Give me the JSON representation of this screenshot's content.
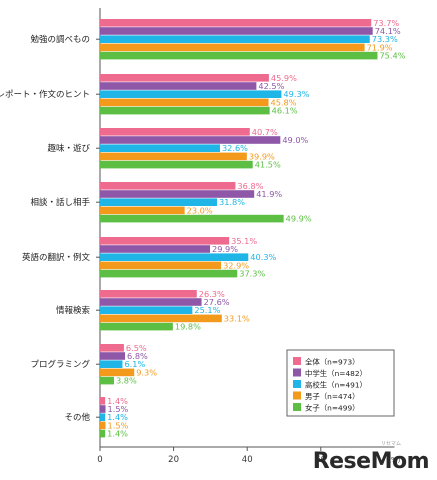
{
  "chart_data": {
    "type": "bar",
    "orientation": "horizontal",
    "categories": [
      "勉強の調べもの",
      "レポート・作文のヒント",
      "趣味・遊び",
      "相談・話し相手",
      "英語の翻訳・例文",
      "情報検索",
      "プログラミング",
      "その他"
    ],
    "series": [
      {
        "name": "全体（n=973）",
        "values": [
          73.7,
          45.9,
          40.7,
          36.8,
          35.1,
          26.3,
          6.5,
          1.4
        ],
        "labels": [
          "73.7%",
          "45.9%",
          "40.7%",
          "36.8%",
          "35.1%",
          "26.3%",
          "6.5%",
          "1.4%"
        ],
        "color": "#ef6a8f"
      },
      {
        "name": "中学生（n=482）",
        "values": [
          74.1,
          42.5,
          49.0,
          41.9,
          29.9,
          27.6,
          6.8,
          1.5
        ],
        "labels": [
          "74.1%",
          "42.5%",
          "49.0%",
          "41.9%",
          "29.9%",
          "27.6%",
          "6.8%",
          "1.5%"
        ],
        "color": "#8e57a8"
      },
      {
        "name": "高校生（n=491）",
        "values": [
          73.3,
          49.3,
          32.6,
          31.8,
          40.3,
          25.1,
          6.1,
          1.4
        ],
        "labels": [
          "73.3%",
          "49.3%",
          "32.6%",
          "31.8%",
          "40.3%",
          "25.1%",
          "6.1%",
          "1.4%"
        ],
        "color": "#1fb5e6"
      },
      {
        "name": "男子（n=474）",
        "values": [
          71.9,
          45.8,
          39.9,
          23.0,
          32.9,
          33.1,
          9.3,
          1.5
        ],
        "labels": [
          "71.9%",
          "45.8%",
          "39.9%",
          "23.0%",
          "32.9%",
          "33.1%",
          "9.3%",
          "1.5%"
        ],
        "color": "#f39a1c"
      },
      {
        "name": "女子（n=499）",
        "values": [
          75.4,
          46.1,
          41.5,
          49.9,
          37.3,
          19.8,
          3.8,
          1.4
        ],
        "labels": [
          "75.4%",
          "46.1%",
          "41.5%",
          "49.9%",
          "37.3%",
          "19.8%",
          "3.8%",
          "1.4%"
        ],
        "color": "#5cbf44"
      }
    ],
    "xticks": [
      "0",
      "20",
      "40",
      "60"
    ],
    "xlim": [
      0,
      80
    ],
    "unit": "（%）",
    "legend_position": "right",
    "grid": false
  },
  "watermark": {
    "brand": "ReseMom",
    "small": "リセマム"
  }
}
